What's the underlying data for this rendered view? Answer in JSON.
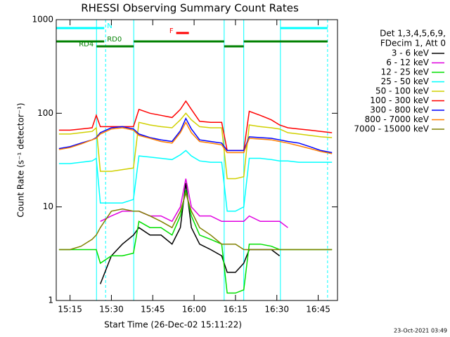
{
  "chart_data": {
    "type": "line",
    "title": "RHESSI Observing Summary Count Rates",
    "ylabel": "Count Rate (s⁻¹ detector⁻¹)",
    "xlabel": "Start Time (26-Dec-02 15:11:22)",
    "footer": "23-Oct-2021 03:49",
    "legend_header": [
      "Det 1,3,4,5,6,9,",
      "FDecim 1, Att 0"
    ],
    "log_y": true,
    "xlim": [
      910,
      1012
    ],
    "ylim": [
      1,
      1000
    ],
    "yticks": [
      1,
      10,
      100,
      1000
    ],
    "xticks": [
      {
        "value": 915,
        "label": "15:15"
      },
      {
        "value": 930,
        "label": "15:30"
      },
      {
        "value": 945,
        "label": "15:45"
      },
      {
        "value": 960,
        "label": "16:00"
      },
      {
        "value": 975,
        "label": "16:15"
      },
      {
        "value": 990,
        "label": "16:30"
      },
      {
        "value": 1005,
        "label": "16:45"
      }
    ],
    "x": [
      911,
      915,
      919,
      923,
      924.5,
      926,
      930,
      934,
      938,
      940,
      944,
      948,
      952,
      955,
      957,
      959,
      962,
      966,
      970,
      972,
      975,
      978,
      980,
      984,
      988,
      991,
      994,
      998,
      1002,
      1006,
      1010
    ],
    "series": [
      {
        "name": "3 - 6 keV",
        "color": "#000000",
        "values": [
          null,
          null,
          null,
          null,
          null,
          1.5,
          3,
          4,
          5,
          6,
          5,
          5,
          4,
          6,
          18,
          6,
          4,
          3.5,
          3,
          2,
          2,
          2.5,
          3.5,
          3.5,
          3.5,
          3,
          null,
          null,
          null,
          null,
          null
        ]
      },
      {
        "name": "6 - 12 keV",
        "color": "#e000e0",
        "values": [
          null,
          null,
          null,
          null,
          null,
          7,
          8,
          9,
          9,
          9,
          8,
          8,
          7,
          10,
          20,
          10,
          8,
          8,
          7,
          7,
          7,
          7,
          8,
          7,
          7,
          7,
          6,
          null,
          null,
          null,
          null
        ]
      },
      {
        "name": "12 - 25 keV",
        "color": "#00e000",
        "values": [
          3.5,
          3.5,
          3.5,
          3.5,
          3.5,
          2.5,
          3,
          3,
          3.2,
          7,
          6,
          6,
          5,
          8,
          15,
          8,
          5,
          4.5,
          4,
          1.2,
          1.2,
          1.3,
          4,
          4,
          3.8,
          3.5,
          3.5,
          3.5,
          3.5,
          3.5,
          3.5
        ]
      },
      {
        "name": "25 - 50 keV",
        "color": "#00ffff",
        "values": [
          29,
          29,
          30,
          31,
          33,
          11,
          11,
          11,
          12,
          35,
          34,
          33,
          32,
          36,
          40,
          35,
          31,
          30,
          30,
          9,
          9,
          10,
          33,
          33,
          32,
          31,
          31,
          30,
          30,
          30,
          30
        ]
      },
      {
        "name": "50 - 100 keV",
        "color": "#d0d000",
        "values": [
          60,
          60,
          62,
          64,
          70,
          24,
          24,
          25,
          26,
          80,
          75,
          72,
          70,
          85,
          100,
          85,
          72,
          70,
          70,
          20,
          20,
          21,
          75,
          72,
          70,
          68,
          62,
          60,
          58,
          56,
          55
        ]
      },
      {
        "name": "100 - 300 keV",
        "color": "#ff0000",
        "values": [
          66,
          66,
          68,
          70,
          95,
          72,
          72,
          72,
          72,
          110,
          100,
          95,
          90,
          110,
          135,
          110,
          82,
          80,
          80,
          40,
          40,
          40,
          105,
          95,
          85,
          75,
          70,
          68,
          66,
          64,
          62
        ]
      },
      {
        "name": "300 - 800 keV",
        "color": "#0000ff",
        "values": [
          42,
          44,
          48,
          52,
          55,
          62,
          70,
          72,
          68,
          60,
          55,
          52,
          50,
          65,
          88,
          68,
          52,
          50,
          48,
          40,
          40,
          40,
          56,
          55,
          54,
          52,
          50,
          48,
          44,
          40,
          38
        ]
      },
      {
        "name": "800 - 7000 keV",
        "color": "#ff8000",
        "values": [
          41,
          43,
          47,
          52,
          54,
          60,
          68,
          70,
          66,
          58,
          54,
          50,
          48,
          62,
          80,
          62,
          50,
          48,
          46,
          38,
          38,
          38,
          54,
          53,
          52,
          50,
          48,
          45,
          42,
          39,
          37
        ]
      },
      {
        "name": "7000 - 15000 keV",
        "color": "#808000",
        "values": [
          3.5,
          3.5,
          3.8,
          4.5,
          5,
          6,
          9,
          9.5,
          9,
          9,
          8,
          7,
          6,
          9,
          14,
          9,
          6,
          5,
          4,
          4,
          4,
          3.5,
          3.5,
          3.5,
          3.5,
          3.5,
          3.5,
          3.5,
          3.5,
          3.5,
          3.5
        ]
      }
    ],
    "flags": [
      {
        "label": "N",
        "color": "#00ffff",
        "label_side": "after",
        "segments": [
          [
            910,
            927.4
          ],
          [
            991.3,
            1008.4
          ]
        ]
      },
      {
        "label": "F",
        "color": "#ff0000",
        "label_side": "before",
        "segments": [
          [
            953.5,
            958.1
          ]
        ]
      },
      {
        "label": "RD0",
        "color": "#008000",
        "label_side": "after",
        "segments": [
          [
            910,
            927.4
          ],
          [
            938.1,
            970.9
          ],
          [
            978,
            1008.4
          ]
        ]
      },
      {
        "label": "RD4",
        "color": "#008000",
        "label_side": "before",
        "segments": [
          [
            924.6,
            938.1
          ],
          [
            970.9,
            978
          ]
        ]
      }
    ],
    "vlines": {
      "color": "#00ffff",
      "solid": [
        910,
        924.6,
        938.1,
        970.9,
        978,
        991.3
      ],
      "dashed": [
        927.9,
        1008.4
      ]
    }
  }
}
